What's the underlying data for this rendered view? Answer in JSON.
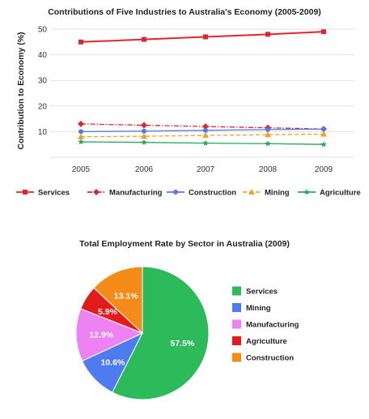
{
  "chart_data": [
    {
      "type": "line",
      "title": "Contributions of Five Industries to Australia's Economy (2005-2009)",
      "ylabel": "Contribution to Economy (%)",
      "xlabel": "",
      "x": [
        "2005",
        "2006",
        "2007",
        "2008",
        "2009"
      ],
      "ylim": [
        0,
        50
      ],
      "yticks": [
        10,
        20,
        30,
        40,
        50
      ],
      "grid": true,
      "legend_position": "bottom",
      "series": [
        {
          "name": "Services",
          "values": [
            45,
            46,
            47,
            48,
            49
          ],
          "color": "#e0262b",
          "marker": "square",
          "dash": "solid"
        },
        {
          "name": "Manufacturing",
          "values": [
            13,
            12.5,
            12,
            11.5,
            11
          ],
          "color": "#e0262b",
          "marker": "diamond",
          "dash": "dashdot"
        },
        {
          "name": "Construction",
          "values": [
            10,
            10.2,
            10.5,
            10.8,
            11
          ],
          "color": "#4f7be8",
          "marker": "circle",
          "dash": "solid"
        },
        {
          "name": "Mining",
          "values": [
            8,
            8.2,
            8.5,
            8.8,
            9
          ],
          "color": "#f5a020",
          "marker": "triangle",
          "dash": "dashed"
        },
        {
          "name": "Agriculture",
          "values": [
            6,
            5.8,
            5.5,
            5.3,
            5
          ],
          "color": "#21a95a",
          "marker": "star",
          "dash": "solid"
        }
      ]
    },
    {
      "type": "pie",
      "title": "Total Employment Rate by Sector in Australia (2009)",
      "legend_position": "right",
      "slices": [
        {
          "label": "Services",
          "value": 57.5,
          "display": "57.5%",
          "color": "#2cba5a"
        },
        {
          "label": "Mining",
          "value": 10.6,
          "display": "10.6%",
          "color": "#4f7bf0"
        },
        {
          "label": "Manufacturing",
          "value": 12.9,
          "display": "12.9%",
          "color": "#ee82f2"
        },
        {
          "label": "Agriculture",
          "value": 5.9,
          "display": "5.9%",
          "color": "#e21b1b"
        },
        {
          "label": "Construction",
          "value": 13.1,
          "display": "13.1%",
          "color": "#f58c1a"
        }
      ]
    }
  ]
}
